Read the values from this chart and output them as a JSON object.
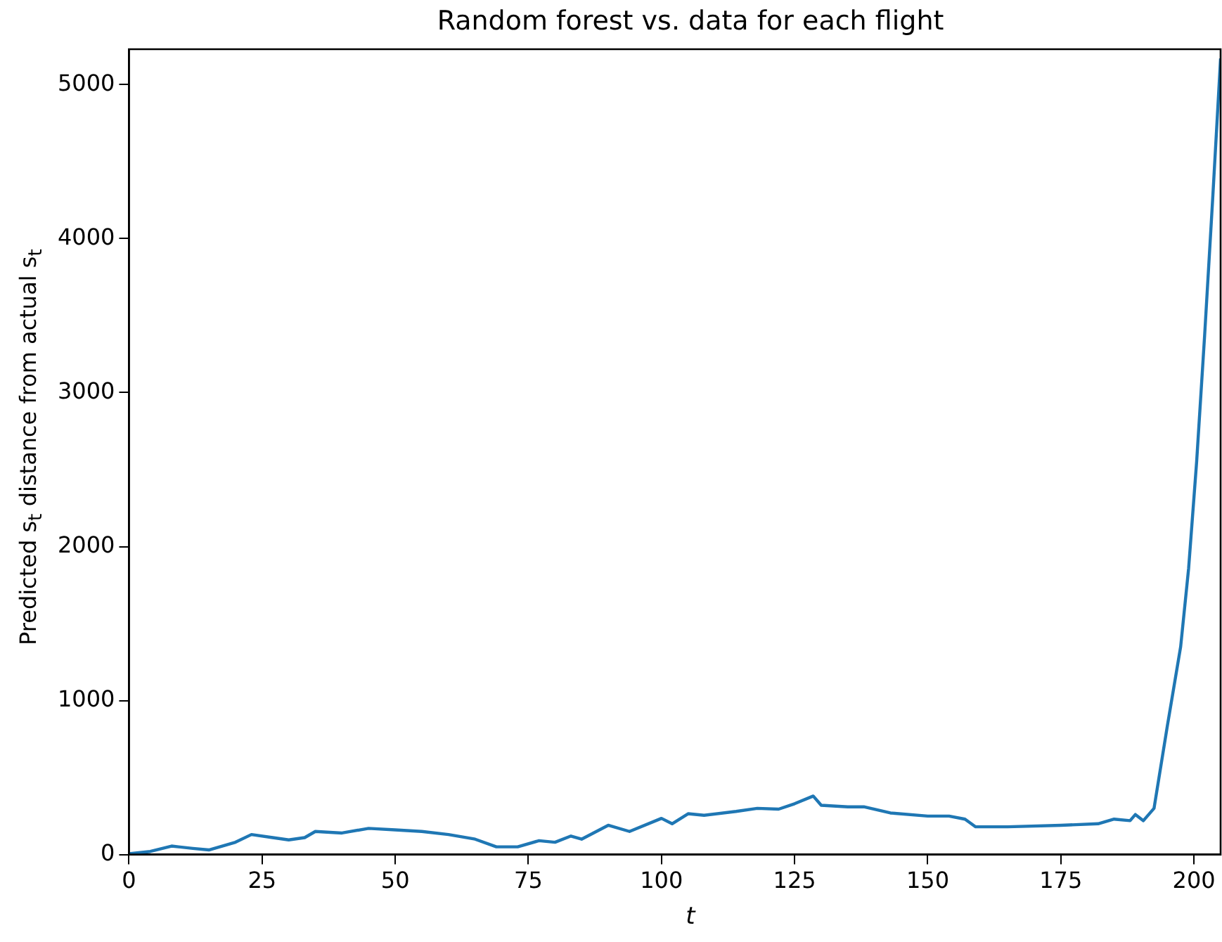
{
  "chart_data": {
    "type": "line",
    "title": "Random forest vs. data for each flight",
    "xlabel": "t",
    "ylabel": "Predicted s$_{t}$ distance from actual s$_{t}$",
    "series": [
      {
        "color": "#1f77b4",
        "x": [
          0,
          4,
          8,
          12,
          15,
          20,
          23,
          27,
          30,
          33,
          35,
          40,
          45,
          50,
          55,
          60,
          65,
          69,
          73,
          77,
          80,
          83,
          85,
          90,
          94,
          100,
          102,
          105,
          108,
          114,
          118,
          122,
          125,
          128.5,
          130,
          135,
          138,
          143,
          150,
          154,
          157,
          159,
          165,
          175,
          182,
          185,
          188,
          189,
          190.5,
          192.5,
          195,
          197.5,
          199,
          200.5,
          202,
          203.5,
          205
        ],
        "values": [
          5,
          20,
          55,
          40,
          30,
          80,
          130,
          110,
          95,
          110,
          150,
          140,
          170,
          160,
          150,
          130,
          100,
          50,
          50,
          90,
          80,
          120,
          100,
          190,
          150,
          235,
          200,
          265,
          255,
          280,
          300,
          295,
          330,
          380,
          320,
          310,
          310,
          270,
          250,
          250,
          230,
          180,
          180,
          190,
          200,
          230,
          220,
          260,
          220,
          300,
          835,
          1350,
          1860,
          2550,
          3370,
          4250,
          5170
        ]
      }
    ],
    "xlim": [
      0,
      205
    ],
    "ylim": [
      0,
      5230
    ],
    "xticks": [
      0,
      25,
      50,
      75,
      100,
      125,
      150,
      175,
      200
    ],
    "yticks": [
      0,
      1000,
      2000,
      3000,
      4000,
      5000
    ],
    "grid": false,
    "legend": false,
    "marker": "none",
    "line_style": "solid"
  }
}
